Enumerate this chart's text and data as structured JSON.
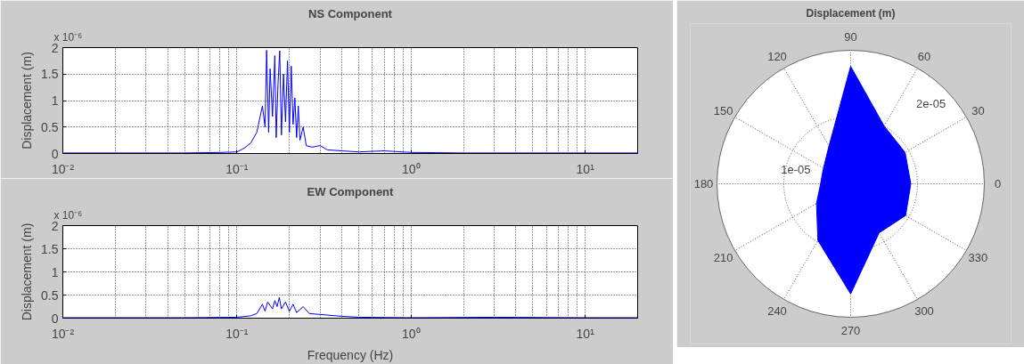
{
  "chart_data": [
    {
      "type": "line",
      "title": "NS Component",
      "ylabel": "Displacement (m)",
      "log": "x",
      "grid": true,
      "xlim": [
        0.01,
        20
      ],
      "xticks": [
        {
          "value": 0.01,
          "label": "10⁻²"
        },
        {
          "value": 0.1,
          "label": "10⁻¹"
        },
        {
          "value": 1,
          "label": "10⁰"
        },
        {
          "value": 10,
          "label": "10¹"
        }
      ],
      "ylim": [
        0,
        2
      ],
      "yticks": [
        0,
        0.5,
        1,
        1.5,
        2
      ],
      "annotations": [
        "x 10⁻⁶"
      ],
      "x": [
        0.01,
        0.02,
        0.05,
        0.08,
        0.1,
        0.11,
        0.12,
        0.13,
        0.14,
        0.145,
        0.148,
        0.152,
        0.155,
        0.16,
        0.165,
        0.168,
        0.172,
        0.176,
        0.18,
        0.185,
        0.19,
        0.195,
        0.2,
        0.205,
        0.21,
        0.215,
        0.22,
        0.225,
        0.23,
        0.24,
        0.25,
        0.27,
        0.3,
        0.33,
        0.4,
        0.5,
        0.7,
        1,
        2,
        5,
        10,
        20
      ],
      "series": [
        {
          "color": "#0000ff",
          "values": [
            0.01,
            0.01,
            0.01,
            0.02,
            0.03,
            0.1,
            0.2,
            0.4,
            0.9,
            0.5,
            1.95,
            0.4,
            1.6,
            0.7,
            1.85,
            0.3,
            1.3,
            1.94,
            0.35,
            1.5,
            0.6,
            1.75,
            0.4,
            1.65,
            0.55,
            1.05,
            0.3,
            0.9,
            0.25,
            0.5,
            0.15,
            0.12,
            0.15,
            0.07,
            0.05,
            0.03,
            0.05,
            0.02,
            0.01,
            0.01,
            0.01,
            0.01
          ]
        }
      ]
    },
    {
      "type": "line",
      "title": "EW Component",
      "xlabel": "Frequency (Hz)",
      "ylabel": "Displacement (m)",
      "log": "x",
      "grid": true,
      "xlim": [
        0.01,
        20
      ],
      "xticks": [
        {
          "value": 0.01,
          "label": "10⁻²"
        },
        {
          "value": 0.1,
          "label": "10⁻¹"
        },
        {
          "value": 1,
          "label": "10⁰"
        },
        {
          "value": 10,
          "label": "10¹"
        }
      ],
      "ylim": [
        0,
        2
      ],
      "yticks": [
        0,
        0.5,
        1,
        1.5,
        2
      ],
      "annotations": [
        "x 10⁻⁶"
      ],
      "x": [
        0.01,
        0.05,
        0.1,
        0.12,
        0.13,
        0.14,
        0.145,
        0.15,
        0.16,
        0.165,
        0.17,
        0.175,
        0.18,
        0.19,
        0.2,
        0.21,
        0.22,
        0.24,
        0.26,
        0.3,
        0.4,
        0.5,
        1,
        3,
        10,
        20
      ],
      "series": [
        {
          "color": "#0000ff",
          "values": [
            0.01,
            0.01,
            0.02,
            0.05,
            0.1,
            0.3,
            0.15,
            0.35,
            0.2,
            0.38,
            0.25,
            0.45,
            0.2,
            0.35,
            0.15,
            0.3,
            0.12,
            0.25,
            0.1,
            0.08,
            0.04,
            0.02,
            0.01,
            0.02,
            0.01,
            0.01
          ]
        }
      ]
    },
    {
      "type": "radar",
      "title": "Displacement (m)",
      "grid": true,
      "categories": [
        "90",
        "60",
        "30",
        "0",
        "330",
        "300",
        "270",
        "240",
        "210",
        "180",
        "150",
        "120"
      ],
      "ylim": [
        0,
        2e-05
      ],
      "yticks": [
        {
          "value": 1e-05,
          "label": "1e-05"
        },
        {
          "value": 2e-05,
          "label": "2e-05"
        }
      ],
      "series": [
        {
          "color": "#0000ff",
          "values": [
            1.76e-05,
            1e-05,
            9.4e-06,
            9e-06,
            9.5e-06,
            8.5e-06,
            1.65e-05,
            9.8e-06,
            5.9e-06,
            4.5e-06,
            4.7e-06,
            6.5e-06
          ]
        }
      ]
    }
  ]
}
